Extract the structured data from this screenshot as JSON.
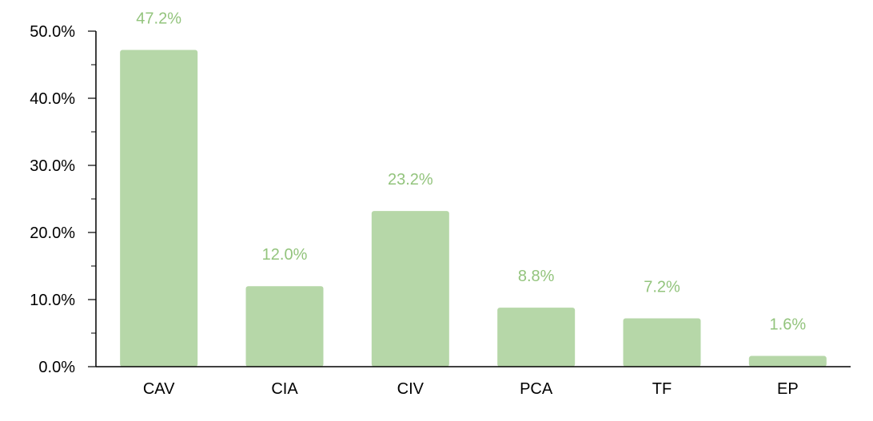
{
  "chart_data": {
    "type": "bar",
    "categories": [
      "CAV",
      "CIA",
      "CIV",
      "PCA",
      "TF",
      "EP"
    ],
    "values": [
      47.2,
      12.0,
      23.2,
      8.8,
      7.2,
      1.6
    ],
    "data_labels": [
      "47.2%",
      "12.0%",
      "23.2%",
      "8.8%",
      "7.2%",
      "1.6%"
    ],
    "title": "",
    "xlabel": "",
    "ylabel": "",
    "ylim": [
      0,
      50
    ],
    "yticks": [
      0,
      10,
      20,
      30,
      40,
      50
    ],
    "ytick_labels": [
      "0.0%",
      "10.0%",
      "20.0%",
      "30.0%",
      "40.0%",
      "50.0%"
    ],
    "grid": false,
    "legend": "none",
    "bar_color": "#b6d7a8",
    "label_color": "#93c47d",
    "axis_color": "#000000"
  }
}
